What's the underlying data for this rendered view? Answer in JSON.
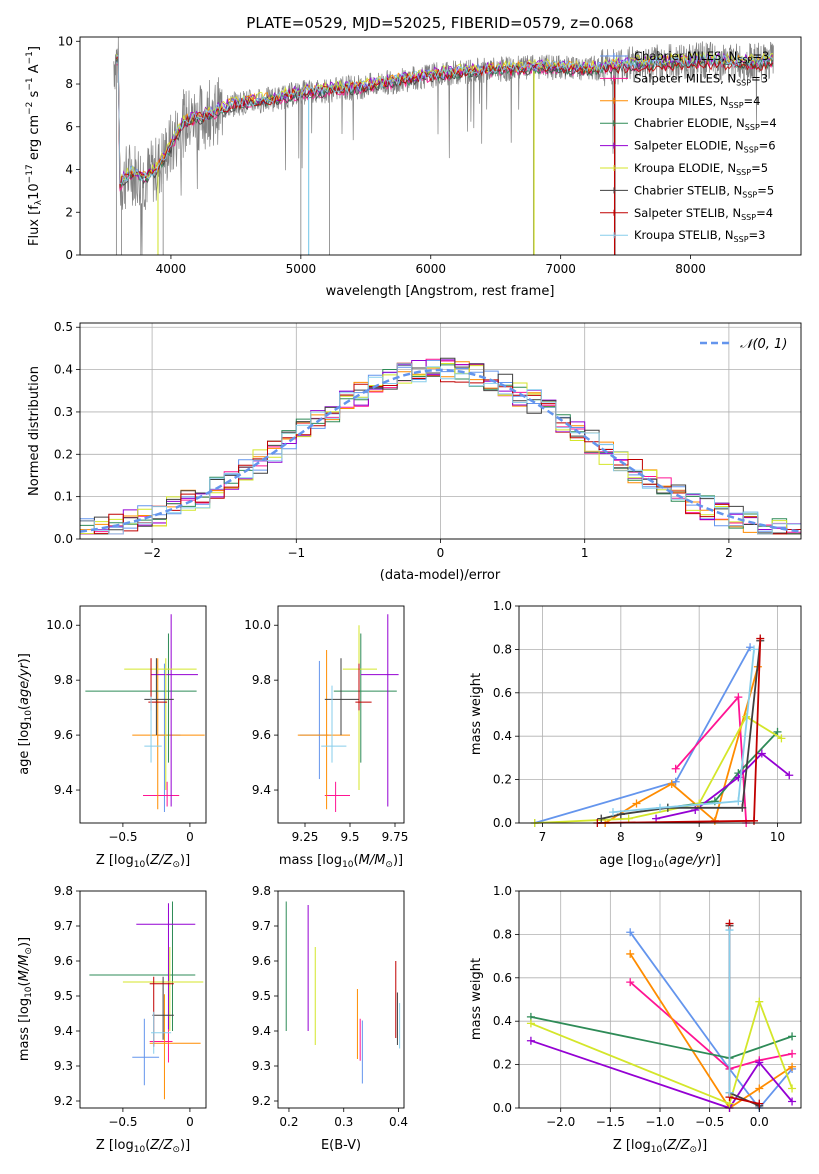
{
  "figure": {
    "title": "PLATE=0529, MJD=52025, FIBERID=0579, z=0.068"
  },
  "colors": [
    "#6495ed",
    "#ff1493",
    "#ff8c00",
    "#2e8b57",
    "#9400d3",
    "#d4e62a",
    "#404040",
    "#c00000",
    "#87ceeb"
  ],
  "chart_data": [
    {
      "id": "spectrum",
      "type": "line",
      "xlabel": "wavelength [Angstrom, rest frame]",
      "ylabel": "Flux [f_λ 10^-17 erg cm^-2 s^-1 A^-1]",
      "xlim": [
        3300,
        8850
      ],
      "ylim": [
        0,
        10.2
      ],
      "xticks": [
        4000,
        5000,
        6000,
        7000,
        8000
      ],
      "yticks": [
        0,
        2,
        4,
        6,
        8,
        10
      ],
      "grid": false,
      "legend_position": "upper right",
      "legend": [
        "Chabrier MILES, N_SSP=3",
        "Salpeter MILES, N_SSP=3",
        "Kroupa MILES, N_SSP=4",
        "Chabrier ELODIE, N_SSP=4",
        "Salpeter ELODIE, N_SSP=6",
        "Kroupa ELODIE, N_SSP=5",
        "Chabrier STELIB, N_SSP=5",
        "Salpeter STELIB, N_SSP=4",
        "Kroupa STELIB, N_SSP=3"
      ],
      "continuum": {
        "x": [
          3600,
          3700,
          3800,
          3900,
          4000,
          4100,
          4300,
          4500,
          4800,
          5000,
          5200,
          5500,
          5800,
          6000,
          6300,
          6600,
          6900,
          7200,
          7500,
          7800,
          8100,
          8400,
          8700
        ],
        "y": [
          3.3,
          3.9,
          3.6,
          4.1,
          5.1,
          6.2,
          6.6,
          7.1,
          7.3,
          7.6,
          7.7,
          7.9,
          8.2,
          8.4,
          8.6,
          8.7,
          8.8,
          8.7,
          8.9,
          9.0,
          9.1,
          9.0,
          9.1
        ]
      }
    },
    {
      "id": "residuals",
      "type": "line",
      "xlabel": "(data-model)/error",
      "ylabel": "Normed distribution",
      "xlim": [
        -2.5,
        2.5
      ],
      "ylim": [
        0,
        0.51
      ],
      "xticks": [
        -2,
        -1,
        0,
        1,
        2
      ],
      "yticks": [
        0.0,
        0.1,
        0.2,
        0.3,
        0.4,
        0.5
      ],
      "grid": true,
      "legend": [
        "N(0,1)"
      ],
      "legend_position": "upper right",
      "gaussian": {
        "mu": 0,
        "sigma": 1
      }
    },
    {
      "id": "age_vs_Z",
      "type": "scatter",
      "xlabel": "Z [log10(Z/Z_sun)]",
      "ylabel": "age  [log10(age/yr)]",
      "xlim": [
        -0.82,
        0.12
      ],
      "ylim": [
        9.28,
        10.07
      ],
      "xticks": [
        -0.5,
        0.0
      ],
      "yticks": [
        9.4,
        9.6,
        9.8,
        10.0
      ],
      "points": [
        {
          "x": -0.19,
          "y": 9.6,
          "xerr": [
            0.05,
            0.12
          ],
          "yerr": [
            0.28,
            0.26
          ]
        },
        {
          "x": -0.17,
          "y": 9.38,
          "xerr": [
            0.18,
            0.09
          ],
          "yerr": [
            0.04,
            0.05
          ]
        },
        {
          "x": -0.24,
          "y": 9.6,
          "xerr": [
            0.19,
            0.35
          ],
          "yerr": [
            0.27,
            0.28
          ]
        },
        {
          "x": -0.16,
          "y": 9.76,
          "xerr": [
            0.62,
            0.21
          ],
          "yerr": [
            0.26,
            0.21
          ]
        },
        {
          "x": -0.14,
          "y": 9.82,
          "xerr": [
            0.15,
            0.2
          ],
          "yerr": [
            0.48,
            0.22
          ]
        },
        {
          "x": -0.18,
          "y": 9.84,
          "xerr": [
            0.31,
            0.23
          ],
          "yerr": [
            0.44,
            0.04
          ]
        },
        {
          "x": -0.25,
          "y": 9.73,
          "xerr": [
            0.09,
            0.13
          ],
          "yerr": [
            0.13,
            0.15
          ]
        },
        {
          "x": -0.29,
          "y": 9.72,
          "xerr": [
            0.02,
            0.12
          ],
          "yerr": [
            0.03,
            0.16
          ]
        },
        {
          "x": -0.29,
          "y": 9.56,
          "xerr": [
            0.05,
            0.08
          ],
          "yerr": [
            0.06,
            0.18
          ]
        }
      ]
    },
    {
      "id": "age_vs_mass",
      "type": "scatter",
      "xlabel": "mass [log10(M/M_sun)]",
      "ylabel": "",
      "xlim": [
        9.1,
        9.8
      ],
      "ylim": [
        9.28,
        10.07
      ],
      "xticks": [
        9.25,
        9.5,
        9.75
      ],
      "yticks": [
        9.4,
        9.6,
        9.8,
        10.0
      ],
      "points": [
        {
          "x": 9.33,
          "y": 9.6,
          "xerr": [
            0.11,
            0.05
          ],
          "yerr": [
            0.16,
            0.27
          ]
        },
        {
          "x": 9.42,
          "y": 9.38,
          "xerr": [
            0.06,
            0.08
          ],
          "yerr": [
            0.06,
            0.05
          ]
        },
        {
          "x": 9.37,
          "y": 9.6,
          "xerr": [
            0.16,
            0.13
          ],
          "yerr": [
            0.27,
            0.31
          ]
        },
        {
          "x": 9.56,
          "y": 9.76,
          "xerr": [
            0.15,
            0.2
          ],
          "yerr": [
            0.26,
            0.21
          ]
        },
        {
          "x": 9.71,
          "y": 9.82,
          "xerr": [
            0.15,
            0.06
          ],
          "yerr": [
            0.48,
            0.22
          ]
        },
        {
          "x": 9.55,
          "y": 9.84,
          "xerr": [
            0.09,
            0.1
          ],
          "yerr": [
            0.44,
            0.16
          ]
        },
        {
          "x": 9.45,
          "y": 9.73,
          "xerr": [
            0.09,
            0.1
          ],
          "yerr": [
            0.13,
            0.15
          ]
        },
        {
          "x": 9.55,
          "y": 9.72,
          "xerr": [
            0.02,
            0.07
          ],
          "yerr": [
            0.03,
            0.14
          ]
        },
        {
          "x": 9.4,
          "y": 9.56,
          "xerr": [
            0.06,
            0.08
          ],
          "yerr": [
            0.06,
            0.22
          ]
        }
      ]
    },
    {
      "id": "weight_vs_age",
      "type": "line",
      "xlabel": "age  [log10(age/yr)]",
      "ylabel": "mass weight",
      "xlim": [
        6.7,
        10.3
      ],
      "ylim": [
        0,
        1.0
      ],
      "xticks": [
        7,
        8,
        9,
        10
      ],
      "yticks": [
        0.0,
        0.2,
        0.4,
        0.6,
        0.8,
        1.0
      ],
      "grid": true,
      "series": [
        {
          "x": [
            6.9,
            8.7,
            9.65
          ],
          "y": [
            0.0,
            0.19,
            0.81
          ]
        },
        {
          "x": [
            8.7,
            9.5,
            9.6
          ],
          "y": [
            0.25,
            0.58,
            0.0
          ]
        },
        {
          "x": [
            7.8,
            8.2,
            8.65,
            9.2,
            9.75
          ],
          "y": [
            0.0,
            0.09,
            0.18,
            0.01,
            0.72
          ]
        },
        {
          "x": [
            8.6,
            9.2,
            9.5,
            10.0
          ],
          "y": [
            0.07,
            0.1,
            0.23,
            0.42
          ]
        },
        {
          "x": [
            8.45,
            8.95,
            9.5,
            9.8,
            10.15
          ],
          "y": [
            0.02,
            0.06,
            0.21,
            0.32,
            0.22
          ]
        },
        {
          "x": [
            6.9,
            8.1,
            9.0,
            9.6,
            10.05
          ],
          "y": [
            0.0,
            0.02,
            0.09,
            0.49,
            0.39
          ]
        },
        {
          "x": [
            7.75,
            8.0,
            8.6,
            9.55,
            9.78
          ],
          "y": [
            0.02,
            0.04,
            0.07,
            0.07,
            0.84
          ]
        },
        {
          "x": [
            7.7,
            9.7,
            9.78
          ],
          "y": [
            0.0,
            0.01,
            0.85
          ]
        },
        {
          "x": [
            7.9,
            8.5,
            9.5,
            9.7
          ],
          "y": [
            0.05,
            0.07,
            0.1,
            0.8
          ]
        }
      ]
    },
    {
      "id": "mass_vs_Z",
      "type": "scatter",
      "xlabel": "Z [log10(Z/Z_sun)]",
      "ylabel": "mass [log10(M/M_sun)]",
      "xlim": [
        -0.82,
        0.12
      ],
      "ylim": [
        9.18,
        9.8
      ],
      "xticks": [
        -0.5,
        0.0
      ],
      "yticks": [
        9.2,
        9.3,
        9.4,
        9.5,
        9.6,
        9.7,
        9.8
      ],
      "points": [
        {
          "x": -0.34,
          "y": 9.325,
          "xerr": [
            0.09,
            0.11
          ],
          "yerr": [
            0.08,
            0.11
          ]
        },
        {
          "x": -0.16,
          "y": 9.37,
          "xerr": [
            0.14,
            0.03
          ],
          "yerr": [
            0.06,
            0.07
          ]
        },
        {
          "x": -0.19,
          "y": 9.365,
          "xerr": [
            0.11,
            0.27
          ],
          "yerr": [
            0.16,
            0.14
          ]
        },
        {
          "x": -0.13,
          "y": 9.56,
          "xerr": [
            0.62,
            0.17
          ],
          "yerr": [
            0.16,
            0.21
          ]
        },
        {
          "x": -0.16,
          "y": 9.705,
          "xerr": [
            0.24,
            0.2
          ],
          "yerr": [
            0.3,
            0.06
          ]
        },
        {
          "x": -0.15,
          "y": 9.54,
          "xerr": [
            0.35,
            0.25
          ],
          "yerr": [
            0.14,
            0.1
          ]
        },
        {
          "x": -0.2,
          "y": 9.445,
          "xerr": [
            0.08,
            0.08
          ],
          "yerr": [
            0.07,
            0.11
          ]
        },
        {
          "x": -0.27,
          "y": 9.535,
          "xerr": [
            0.03,
            0.15
          ],
          "yerr": [
            0.18,
            0.02
          ]
        },
        {
          "x": -0.27,
          "y": 9.395,
          "xerr": [
            0.02,
            0.13
          ],
          "yerr": [
            0.06,
            0.06
          ]
        }
      ]
    },
    {
      "id": "ebv",
      "type": "scatter",
      "xlabel": "E(B-V)",
      "ylabel": "",
      "xlim": [
        0.18,
        0.41
      ],
      "ylim": [
        9.18,
        9.8
      ],
      "xticks": [
        0.2,
        0.3,
        0.4
      ],
      "yticks": [
        9.2,
        9.3,
        9.4,
        9.5,
        9.6,
        9.7,
        9.8
      ],
      "points": [
        {
          "x": 0.334,
          "y": 9.33,
          "yerr": [
            0.08,
            0.1
          ]
        },
        {
          "x": 0.33,
          "y": 9.375,
          "yerr": [
            0.06,
            0.06
          ]
        },
        {
          "x": 0.325,
          "y": 9.39,
          "yerr": [
            0.07,
            0.13
          ]
        },
        {
          "x": 0.195,
          "y": 9.56,
          "yerr": [
            0.16,
            0.21
          ]
        },
        {
          "x": 0.235,
          "y": 9.56,
          "yerr": [
            0.16,
            0.2
          ]
        },
        {
          "x": 0.248,
          "y": 9.5,
          "yerr": [
            0.14,
            0.14
          ]
        },
        {
          "x": 0.398,
          "y": 9.44,
          "yerr": [
            0.08,
            0.07
          ]
        },
        {
          "x": 0.395,
          "y": 9.49,
          "yerr": [
            0.11,
            0.11
          ]
        },
        {
          "x": 0.402,
          "y": 9.42,
          "yerr": [
            0.07,
            0.06
          ]
        }
      ]
    },
    {
      "id": "weight_vs_Z",
      "type": "line",
      "xlabel": "Z [log10(Z/Z_sun)]",
      "ylabel": "mass weight",
      "xlim": [
        -2.42,
        0.42
      ],
      "ylim": [
        0,
        1.0
      ],
      "xticks": [
        -2.0,
        -1.5,
        -1.0,
        -0.5,
        0.0
      ],
      "yticks": [
        0.0,
        0.2,
        0.4,
        0.6,
        0.8,
        1.0
      ],
      "grid": true,
      "series": [
        {
          "x": [
            -1.3,
            -0.3,
            0.0,
            0.33
          ],
          "y": [
            0.81,
            0.18,
            0.0,
            0.18
          ]
        },
        {
          "x": [
            -1.3,
            -0.3,
            0.0,
            0.33
          ],
          "y": [
            0.58,
            0.18,
            0.22,
            0.25
          ]
        },
        {
          "x": [
            -1.3,
            -0.3,
            0.0,
            0.33
          ],
          "y": [
            0.71,
            0.0,
            0.09,
            0.19
          ]
        },
        {
          "x": [
            -2.3,
            -0.3,
            0.33
          ],
          "y": [
            0.42,
            0.23,
            0.33
          ]
        },
        {
          "x": [
            -2.3,
            -0.3,
            0.0,
            0.33
          ],
          "y": [
            0.31,
            0.0,
            0.21,
            0.03
          ]
        },
        {
          "x": [
            -2.3,
            -0.3,
            0.0,
            0.33
          ],
          "y": [
            0.39,
            0.02,
            0.49,
            0.09
          ]
        },
        {
          "x": [
            -0.3,
            -0.3,
            0.0
          ],
          "y": [
            0.84,
            0.07,
            0.01
          ]
        },
        {
          "x": [
            -0.3,
            -0.3,
            0.0
          ],
          "y": [
            0.85,
            0.05,
            0.02
          ]
        },
        {
          "x": [
            -0.3,
            -0.3
          ],
          "y": [
            0.82,
            0.07
          ]
        }
      ]
    }
  ]
}
